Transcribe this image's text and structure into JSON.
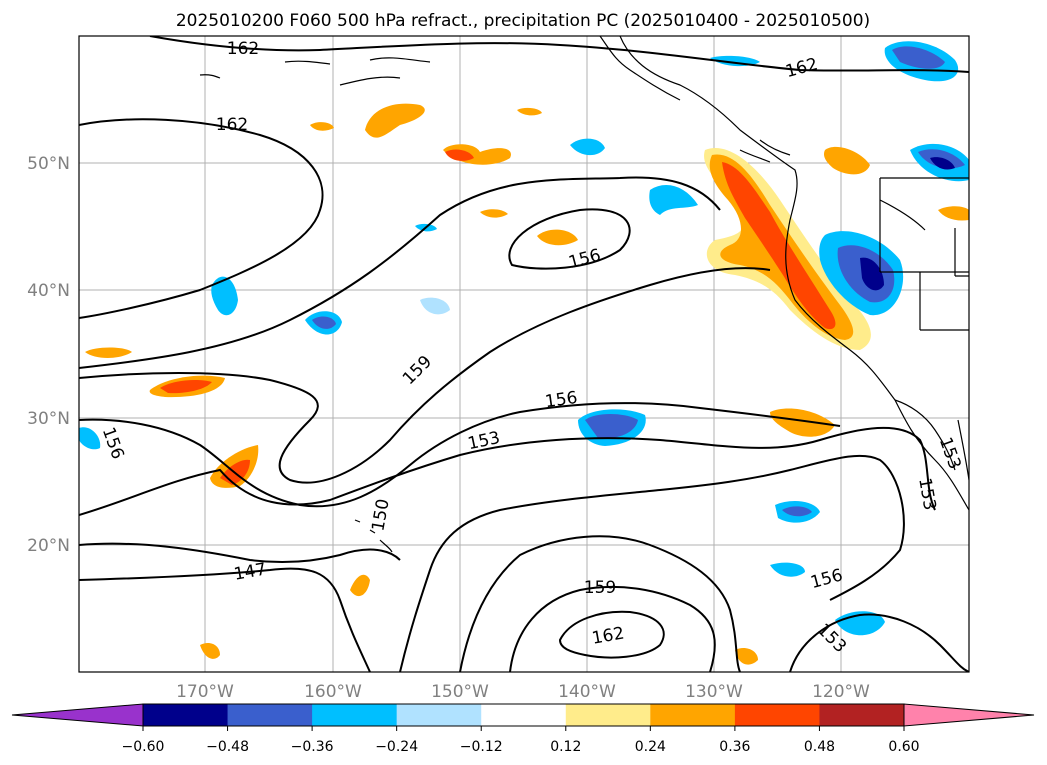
{
  "chart_data": {
    "type": "contour-map",
    "title": "2025010200 F060 500 hPa refract., precipitation PC (2025010400 - 2025010500)",
    "lat_ticks": [
      "50°N",
      "40°N",
      "30°N",
      "20°N"
    ],
    "lon_ticks": [
      "170°W",
      "160°W",
      "150°W",
      "140°W",
      "130°W",
      "120°W"
    ],
    "contour_labels": [
      "162",
      "162",
      "162",
      "156",
      "159",
      "156",
      "153",
      "156",
      "150",
      "147",
      "159",
      "162",
      "156",
      "153",
      "153",
      "153"
    ],
    "colorbar": {
      "ticks": [
        "−0.60",
        "−0.48",
        "−0.36",
        "−0.24",
        "−0.12",
        "0.12",
        "0.24",
        "0.36",
        "0.48",
        "0.60"
      ],
      "colors": [
        "#9932cc",
        "#00008b",
        "#3a5fcd",
        "#00bfff",
        "#b0e2ff",
        "#ffffff",
        "#ffec8b",
        "#ffa500",
        "#ff4500",
        "#b22222",
        "#ff82ab"
      ]
    }
  }
}
